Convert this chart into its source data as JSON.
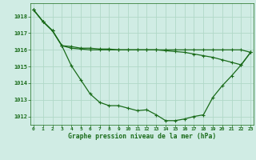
{
  "title": "Graphe pression niveau de la mer (hPa)",
  "ylabel_range": [
    1011.5,
    1018.8
  ],
  "yticks": [
    1012,
    1013,
    1014,
    1015,
    1016,
    1017,
    1018
  ],
  "xticks": [
    0,
    1,
    2,
    3,
    4,
    5,
    6,
    7,
    8,
    9,
    10,
    11,
    12,
    13,
    14,
    15,
    16,
    17,
    18,
    19,
    20,
    21,
    22,
    23
  ],
  "bg_color": "#d0ece4",
  "line_color": "#1a6b1a",
  "grid_color": "#b0d8c8",
  "line1": [
    1018.4,
    1017.7,
    1017.15,
    1016.25,
    1015.05,
    1014.2,
    1013.35,
    1012.85,
    1012.65,
    1012.65,
    1012.5,
    1012.35,
    1012.4,
    1012.1,
    1011.75,
    1011.75,
    1011.85,
    1012.0,
    1012.1,
    1013.15,
    1013.85,
    1014.45,
    1015.1,
    1015.85
  ],
  "line2": [
    1018.4,
    1017.7,
    1017.15,
    1016.25,
    1016.1,
    1016.05,
    1016.0,
    1016.0,
    1016.0,
    1016.0,
    1016.0,
    1016.0,
    1016.0,
    1016.0,
    1016.0,
    1016.0,
    1016.0,
    1016.0,
    1016.0,
    1016.0,
    1016.0,
    1016.0,
    1016.0,
    1015.85
  ],
  "line3": [
    1018.4,
    1017.7,
    1017.15,
    1016.25,
    1016.2,
    1016.1,
    1016.1,
    1016.05,
    1016.05,
    1016.0,
    1016.0,
    1016.0,
    1016.0,
    1016.0,
    1015.95,
    1015.9,
    1015.85,
    1015.75,
    1015.65,
    1015.55,
    1015.4,
    1015.25,
    1015.1,
    1015.85
  ]
}
